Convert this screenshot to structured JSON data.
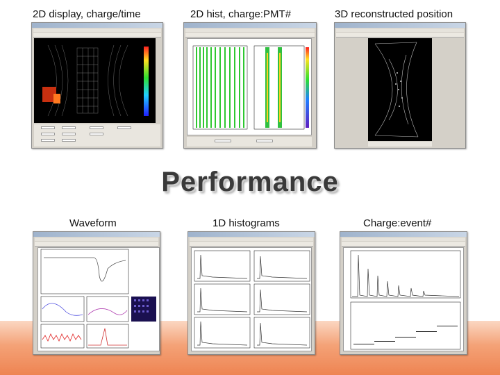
{
  "title": "Performance",
  "panels": {
    "p1": {
      "caption": "2D display,  charge/time"
    },
    "p2": {
      "caption": "2D hist,  charge:PMT#"
    },
    "p3": {
      "caption": "3D reconstructed position"
    },
    "p4": {
      "caption": "Waveform"
    },
    "p5": {
      "caption": "1D histograms"
    },
    "p6": {
      "caption": "Charge:event#"
    }
  },
  "colors": {
    "accent_orange": "#ee8452",
    "window_gray": "#d4d0c8"
  }
}
